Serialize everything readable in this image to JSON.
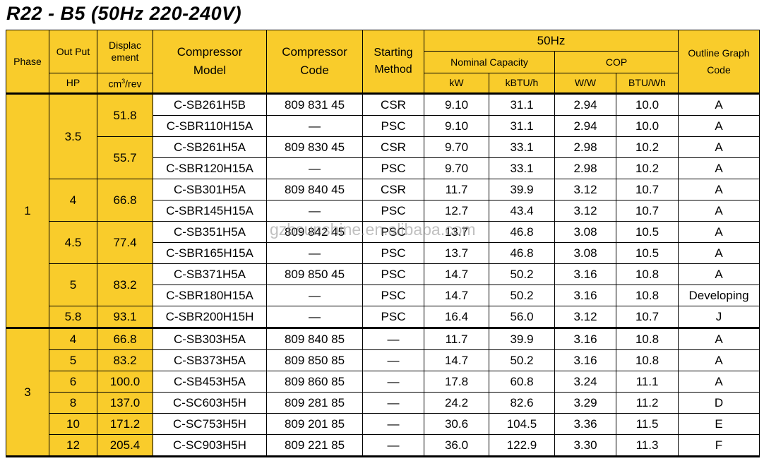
{
  "title": "R22 - B5 (50Hz 220-240V)",
  "watermark": "gzbsunshine.en.alibaba.com",
  "header": {
    "phase": "Phase",
    "output": "Out Put",
    "displacement": [
      "Displac",
      "ement"
    ],
    "model": [
      "Compressor",
      "Model"
    ],
    "code": [
      "Compressor",
      "Code"
    ],
    "method": [
      "Starting",
      "Method"
    ],
    "freq": "50Hz",
    "capacity": "Nominal Capacity",
    "cop": "COP",
    "outline": [
      "Outline Graph",
      "Code"
    ],
    "units": {
      "hp": "HP",
      "disp": {
        "base": "cm",
        "sup": "3",
        "rest": "/rev"
      },
      "kw": "kW",
      "kbtu": "kBTU/h",
      "ww": "W/W",
      "btuwh": "BTU/Wh"
    }
  },
  "phases": [
    {
      "phase": "1",
      "outputs": [
        {
          "hp": "3.5",
          "displacements": [
            {
              "value": "51.8",
              "rows": [
                [
                  "C-SB261H5B",
                  "809 831 45",
                  "CSR",
                  "9.10",
                  "31.1",
                  "2.94",
                  "10.0",
                  "A"
                ],
                [
                  "C-SBR110H15A",
                  "—",
                  "PSC",
                  "9.10",
                  "31.1",
                  "2.94",
                  "10.0",
                  "A"
                ]
              ]
            },
            {
              "value": "55.7",
              "rows": [
                [
                  "C-SB261H5A",
                  "809 830 45",
                  "CSR",
                  "9.70",
                  "33.1",
                  "2.98",
                  "10.2",
                  "A"
                ],
                [
                  "C-SBR120H15A",
                  "—",
                  "PSC",
                  "9.70",
                  "33.1",
                  "2.98",
                  "10.2",
                  "A"
                ]
              ]
            }
          ]
        },
        {
          "hp": "4",
          "displacements": [
            {
              "value": "66.8",
              "rows": [
                [
                  "C-SB301H5A",
                  "809 840 45",
                  "CSR",
                  "11.7",
                  "39.9",
                  "3.12",
                  "10.7",
                  "A"
                ],
                [
                  "C-SBR145H15A",
                  "—",
                  "PSC",
                  "12.7",
                  "43.4",
                  "3.12",
                  "10.7",
                  "A"
                ]
              ]
            }
          ]
        },
        {
          "hp": "4.5",
          "displacements": [
            {
              "value": "77.4",
              "rows": [
                [
                  "C-SB351H5A",
                  "809 842 45",
                  "PSC",
                  "13.7",
                  "46.8",
                  "3.08",
                  "10.5",
                  "A"
                ],
                [
                  "C-SBR165H15A",
                  "—",
                  "PSC",
                  "13.7",
                  "46.8",
                  "3.08",
                  "10.5",
                  "A"
                ]
              ]
            }
          ]
        },
        {
          "hp": "5",
          "displacements": [
            {
              "value": "83.2",
              "rows": [
                [
                  "C-SB371H5A",
                  "809 850 45",
                  "PSC",
                  "14.7",
                  "50.2",
                  "3.16",
                  "10.8",
                  "A"
                ],
                [
                  "C-SBR180H15A",
                  "—",
                  "PSC",
                  "14.7",
                  "50.2",
                  "3.16",
                  "10.8",
                  "Developing"
                ]
              ]
            }
          ]
        },
        {
          "hp": "5.8",
          "displacements": [
            {
              "value": "93.1",
              "rows": [
                [
                  "C-SBR200H15H",
                  "—",
                  "PSC",
                  "16.4",
                  "56.0",
                  "3.12",
                  "10.7",
                  "J"
                ]
              ]
            }
          ]
        }
      ]
    },
    {
      "phase": "3",
      "outputs": [
        {
          "hp": "4",
          "displacements": [
            {
              "value": "66.8",
              "rows": [
                [
                  "C-SB303H5A",
                  "809 840 85",
                  "—",
                  "11.7",
                  "39.9",
                  "3.16",
                  "10.8",
                  "A"
                ]
              ]
            }
          ]
        },
        {
          "hp": "5",
          "displacements": [
            {
              "value": "83.2",
              "rows": [
                [
                  "C-SB373H5A",
                  "809 850 85",
                  "—",
                  "14.7",
                  "50.2",
                  "3.16",
                  "10.8",
                  "A"
                ]
              ]
            }
          ]
        },
        {
          "hp": "6",
          "displacements": [
            {
              "value": "100.0",
              "rows": [
                [
                  "C-SB453H5A",
                  "809 860 85",
                  "—",
                  "17.8",
                  "60.8",
                  "3.24",
                  "11.1",
                  "A"
                ]
              ]
            }
          ]
        },
        {
          "hp": "8",
          "displacements": [
            {
              "value": "137.0",
              "rows": [
                [
                  "C-SC603H5H",
                  "809 281 85",
                  "—",
                  "24.2",
                  "82.6",
                  "3.29",
                  "11.2",
                  "D"
                ]
              ]
            }
          ]
        },
        {
          "hp": "10",
          "displacements": [
            {
              "value": "171.2",
              "rows": [
                [
                  "C-SC753H5H",
                  "809 201 85",
                  "—",
                  "30.6",
                  "104.5",
                  "3.36",
                  "11.5",
                  "E"
                ]
              ]
            }
          ]
        },
        {
          "hp": "12",
          "displacements": [
            {
              "value": "205.4",
              "rows": [
                [
                  "C-SC903H5H",
                  "809 221 85",
                  "—",
                  "36.0",
                  "122.9",
                  "3.30",
                  "11.3",
                  "F"
                ]
              ]
            }
          ]
        }
      ]
    }
  ]
}
